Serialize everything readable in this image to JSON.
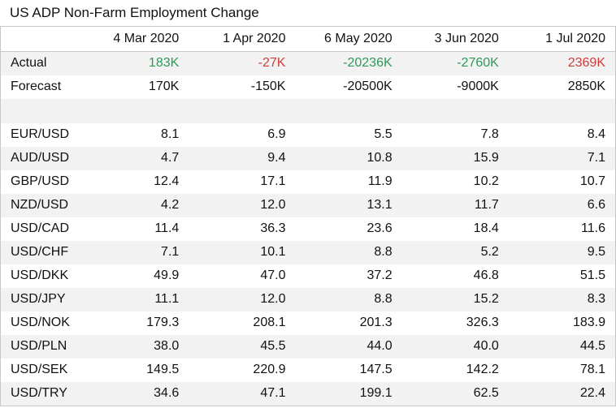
{
  "title": "US ADP Non-Farm Employment Change",
  "dates": [
    "4 Mar 2020",
    "1 Apr 2020",
    "6 May 2020",
    "3 Jun 2020",
    "1 Jul 2020"
  ],
  "actual": {
    "label": "Actual",
    "values": [
      "183K",
      "-27K",
      "-20236K",
      "-2760K",
      "2369K"
    ],
    "colors": [
      "green",
      "red",
      "green",
      "green",
      "red"
    ]
  },
  "forecast": {
    "label": "Forecast",
    "values": [
      "170K",
      "-150K",
      "-20500K",
      "-9000K",
      "2850K"
    ]
  },
  "rows": [
    {
      "pair": "EUR/USD",
      "values": [
        "8.1",
        "6.9",
        "5.5",
        "7.8",
        "8.4"
      ]
    },
    {
      "pair": "AUD/USD",
      "values": [
        "4.7",
        "9.4",
        "10.8",
        "15.9",
        "7.1"
      ]
    },
    {
      "pair": "GBP/USD",
      "values": [
        "12.4",
        "17.1",
        "11.9",
        "10.2",
        "10.7"
      ]
    },
    {
      "pair": "NZD/USD",
      "values": [
        "4.2",
        "12.0",
        "13.1",
        "11.7",
        "6.6"
      ]
    },
    {
      "pair": "USD/CAD",
      "values": [
        "11.4",
        "36.3",
        "23.6",
        "18.4",
        "11.6"
      ]
    },
    {
      "pair": "USD/CHF",
      "values": [
        "7.1",
        "10.1",
        "8.8",
        "5.2",
        "9.5"
      ]
    },
    {
      "pair": "USD/DKK",
      "values": [
        "49.9",
        "47.0",
        "37.2",
        "46.8",
        "51.5"
      ]
    },
    {
      "pair": "USD/JPY",
      "values": [
        "11.1",
        "12.0",
        "8.8",
        "15.2",
        "8.3"
      ]
    },
    {
      "pair": "USD/NOK",
      "values": [
        "179.3",
        "208.1",
        "201.3",
        "326.3",
        "183.9"
      ]
    },
    {
      "pair": "USD/PLN",
      "values": [
        "38.0",
        "45.5",
        "44.0",
        "40.0",
        "44.5"
      ]
    },
    {
      "pair": "USD/SEK",
      "values": [
        "149.5",
        "220.9",
        "147.5",
        "142.2",
        "78.1"
      ]
    },
    {
      "pair": "USD/TRY",
      "values": [
        "34.6",
        "47.1",
        "199.1",
        "62.5",
        "22.4"
      ]
    }
  ]
}
